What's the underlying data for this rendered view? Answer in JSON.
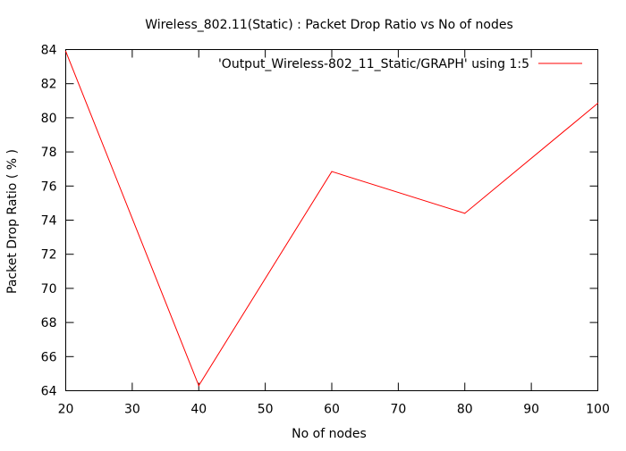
{
  "chart_data": {
    "type": "line",
    "title": "Wireless_802.11(Static) : Packet Drop Ratio vs No of nodes",
    "xlabel": "No of nodes",
    "ylabel": "Packet Drop Ratio ( % )",
    "xlim": [
      20,
      100
    ],
    "ylim": [
      64,
      84
    ],
    "x_ticks": [
      "20",
      "30",
      "40",
      "50",
      "60",
      "70",
      "80",
      "90",
      "100"
    ],
    "y_ticks": [
      "64",
      "66",
      "68",
      "70",
      "72",
      "74",
      "76",
      "78",
      "80",
      "82",
      "84"
    ],
    "grid": false,
    "legend_position": "top-right",
    "series": [
      {
        "name": "'Output_Wireless-802_11_Static/GRAPH' using 1:5",
        "color": "#ff0000",
        "x": [
          20,
          40,
          60,
          80,
          100
        ],
        "y": [
          83.9,
          64.3,
          76.85,
          74.4,
          80.85
        ]
      }
    ]
  }
}
